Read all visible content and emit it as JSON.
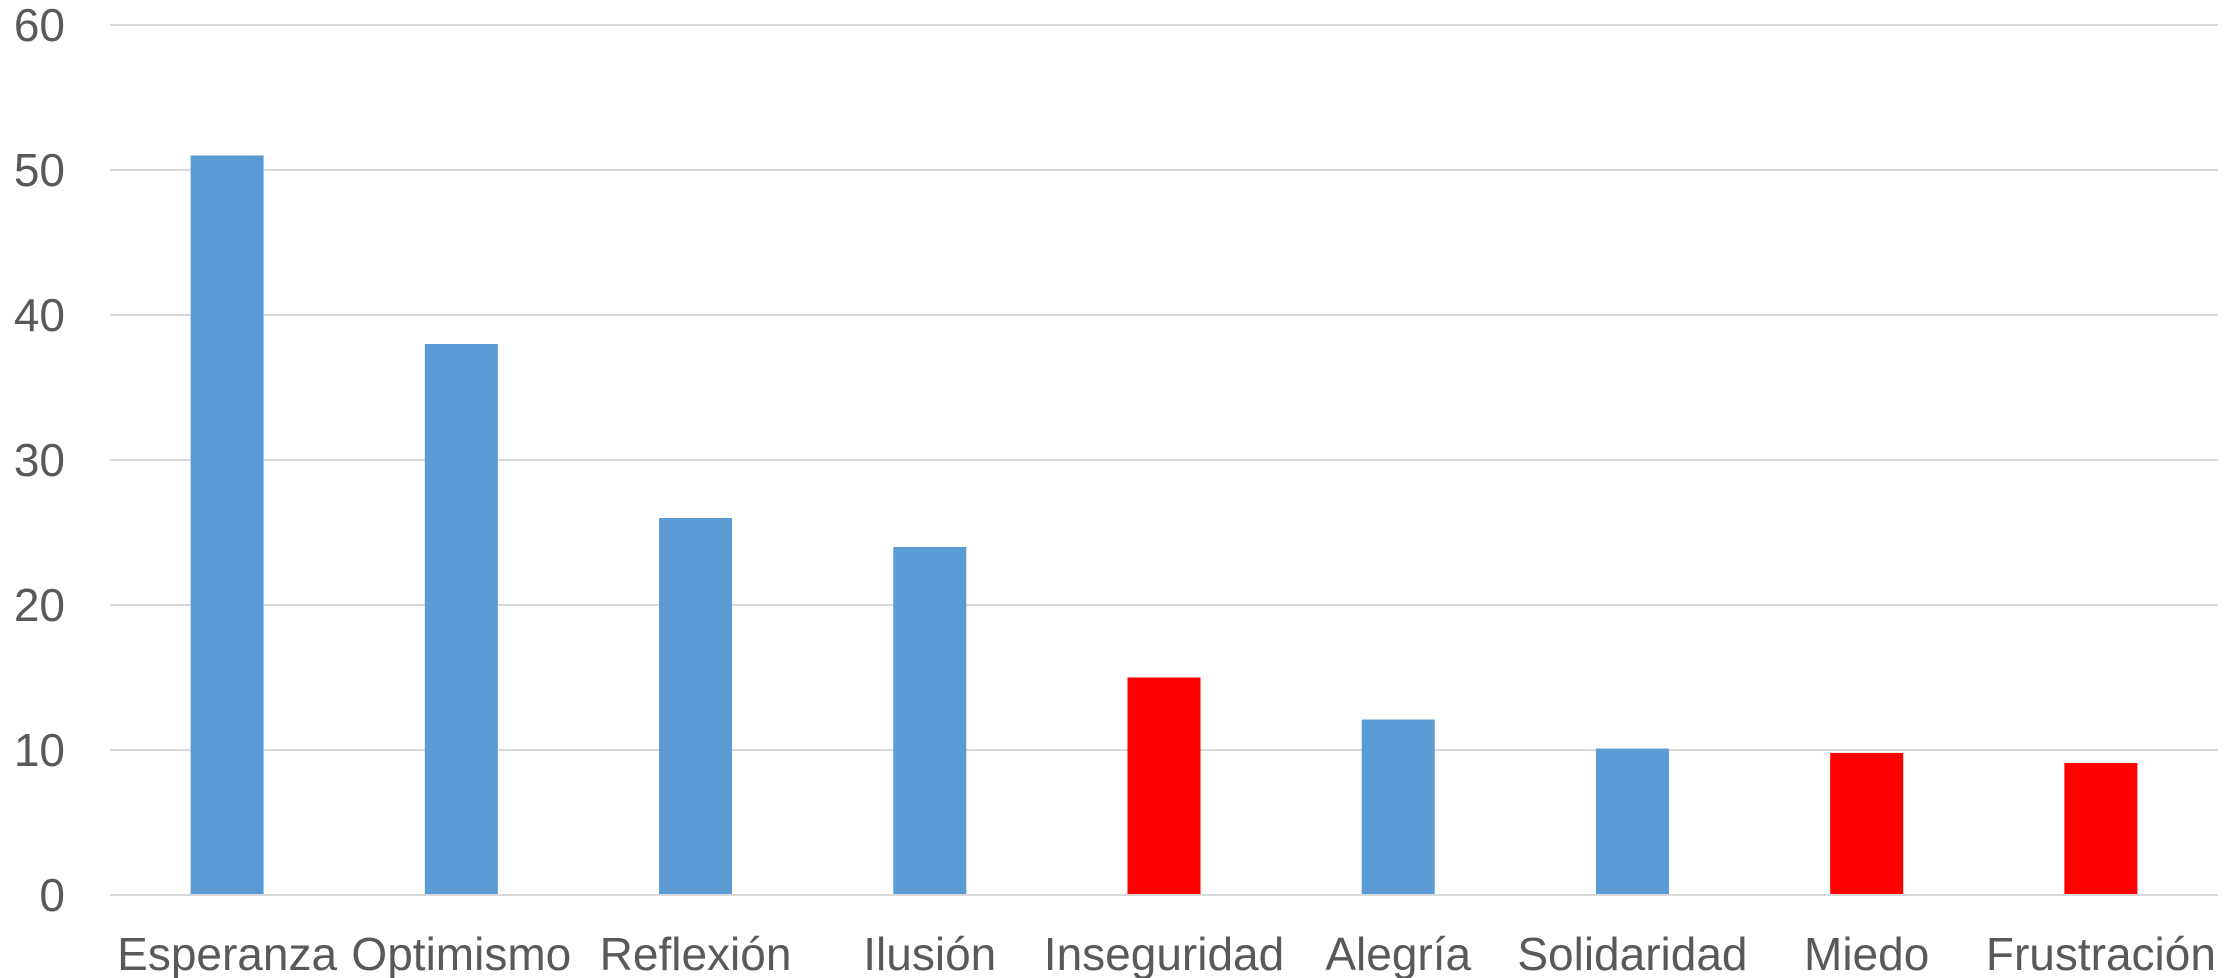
{
  "chart_data": {
    "type": "bar",
    "categories": [
      "Esperanza",
      "Optimismo",
      "Reflexión",
      "Ilusión",
      "Inseguridad",
      "Alegría",
      "Solidaridad",
      "Miedo",
      "Frustración"
    ],
    "values": [
      51,
      38,
      26,
      24,
      15,
      12.1,
      10.1,
      9.8,
      9.1
    ],
    "bar_colors": [
      "#5b9bd5",
      "#5b9bd5",
      "#5b9bd5",
      "#5b9bd5",
      "#ff0000",
      "#5b9bd5",
      "#5b9bd5",
      "#ff0000",
      "#ff0000"
    ],
    "ylim": [
      0,
      60
    ],
    "yticks": [
      0,
      10,
      20,
      30,
      40,
      50,
      60
    ],
    "grid": true,
    "legend": "none"
  }
}
